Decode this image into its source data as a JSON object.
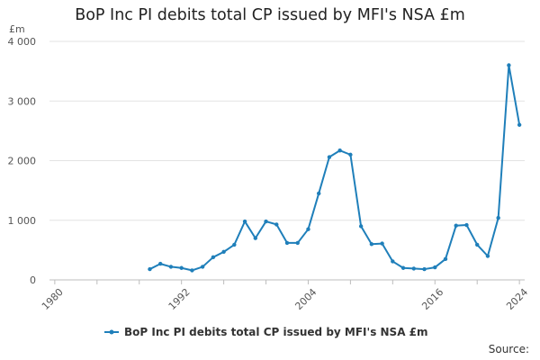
{
  "chart_data": {
    "type": "line",
    "title": "BoP Inc PI debits total CP issued by MFI's NSA £m",
    "ylabel": "£m",
    "xlabel": "",
    "xlim": [
      1979.5,
      2024.5
    ],
    "ylim": [
      0,
      4000
    ],
    "y_ticks": [
      0,
      1000,
      2000,
      3000,
      4000
    ],
    "y_tick_labels": [
      "0",
      "1 000",
      "2 000",
      "3 000",
      "4 000"
    ],
    "x_ticks": [
      1980,
      1992,
      2004,
      2016,
      2024
    ],
    "x_tick_labels": [
      "1980",
      "1992",
      "2004",
      "2016",
      "2024"
    ],
    "grid": "horizontal",
    "legend_position": "bottom",
    "series": [
      {
        "name": "BoP Inc PI debits total CP issued by MFI's NSA £m",
        "color": "#1f7fba",
        "x": [
          1989,
          1990,
          1991,
          1992,
          1993,
          1994,
          1995,
          1996,
          1997,
          1998,
          1999,
          2000,
          2001,
          2002,
          2003,
          2004,
          2005,
          2006,
          2007,
          2008,
          2009,
          2010,
          2011,
          2012,
          2013,
          2014,
          2015,
          2016,
          2017,
          2018,
          2019,
          2020,
          2021,
          2022,
          2023,
          2024
        ],
        "values": [
          180,
          270,
          220,
          200,
          160,
          220,
          380,
          470,
          590,
          980,
          700,
          980,
          930,
          620,
          620,
          850,
          1450,
          2060,
          2170,
          2100,
          900,
          600,
          610,
          310,
          200,
          190,
          180,
          210,
          350,
          910,
          920,
          590,
          400,
          1040,
          3600,
          2600
        ]
      }
    ]
  },
  "source_label": "Source:"
}
